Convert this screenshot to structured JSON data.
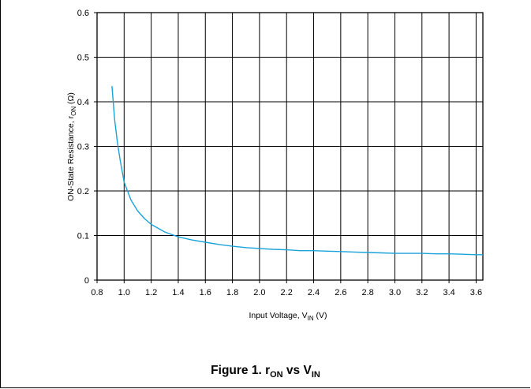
{
  "chart_data": {
    "type": "line",
    "title": "",
    "xlabel": {
      "main": "Input Voltage, V",
      "sub": "IN",
      "unit": "(V)"
    },
    "ylabel": {
      "main": "ON-State Resistance, r",
      "sub": "ON",
      "unit": "(Ω)"
    },
    "xlim": [
      0.8,
      3.65
    ],
    "ylim": [
      0,
      0.6
    ],
    "xticks": [
      0.8,
      1.0,
      1.2,
      1.4,
      1.6,
      1.8,
      2.0,
      2.2,
      2.4,
      2.6,
      2.8,
      3.0,
      3.2,
      3.4,
      3.6
    ],
    "xtick_labels": [
      "0.8",
      "1.0",
      "1.2",
      "1.4",
      "1.6",
      "1.8",
      "2.0",
      "2.2",
      "2.4",
      "2.6",
      "2.8",
      "3.0",
      "3.2",
      "3.4",
      "3.6"
    ],
    "yticks": [
      0,
      0.1,
      0.2,
      0.3,
      0.4,
      0.5,
      0.6
    ],
    "ytick_labels": [
      "0",
      "0.1",
      "0.2",
      "0.3",
      "0.4",
      "0.5",
      "0.6"
    ],
    "grid": true,
    "series": [
      {
        "color": "#1aa3d9",
        "x": [
          0.91,
          0.93,
          0.95,
          0.97,
          1.0,
          1.05,
          1.1,
          1.15,
          1.2,
          1.3,
          1.4,
          1.5,
          1.6,
          1.7,
          1.8,
          1.9,
          2.0,
          2.1,
          2.2,
          2.3,
          2.4,
          2.5,
          2.6,
          2.7,
          2.8,
          2.9,
          3.0,
          3.1,
          3.2,
          3.3,
          3.4,
          3.5,
          3.6,
          3.65
        ],
        "y": [
          0.435,
          0.36,
          0.31,
          0.27,
          0.22,
          0.18,
          0.155,
          0.138,
          0.125,
          0.108,
          0.097,
          0.09,
          0.085,
          0.08,
          0.076,
          0.073,
          0.071,
          0.069,
          0.068,
          0.066,
          0.066,
          0.065,
          0.064,
          0.063,
          0.062,
          0.061,
          0.06,
          0.06,
          0.06,
          0.059,
          0.059,
          0.058,
          0.057,
          0.057
        ]
      }
    ]
  },
  "figure": {
    "caption_prefix": "Figure 1. r",
    "caption_sub1": "ON",
    "caption_mid": " vs V",
    "caption_sub2": "IN"
  }
}
